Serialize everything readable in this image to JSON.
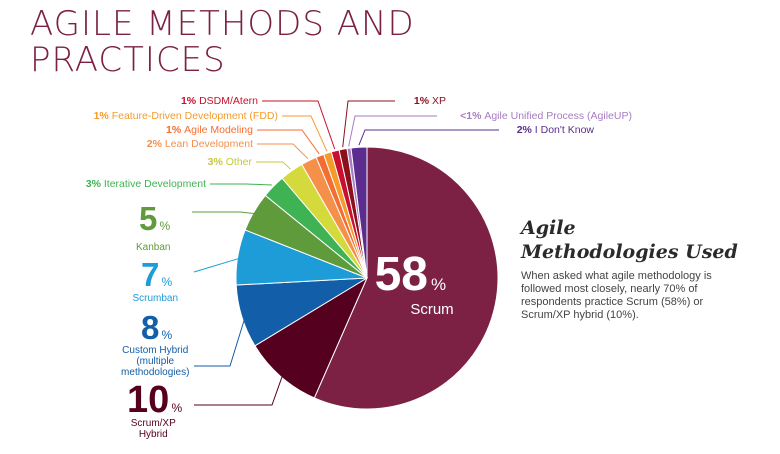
{
  "title_lines": [
    "AGILE METHODS AND",
    "PRACTICES"
  ],
  "side": {
    "heading_lines": [
      "Agile",
      "Methodologies Used"
    ],
    "body": "When asked what agile methodology is followed most closely, nearly 70% of respondents practice Scrum (58%) or Scrum/XP hybrid (10%)."
  },
  "chart_data": {
    "type": "pie",
    "title": "Agile Methodologies Used",
    "slices": [
      {
        "label": "Scrum",
        "display": "58",
        "value": 58,
        "color": "#7c2143"
      },
      {
        "label": "Scrum/XP Hybrid",
        "display": "10",
        "value": 10,
        "color": "#55001f"
      },
      {
        "label": "Custom Hybrid (multiple methodologies)",
        "display": "8",
        "value": 8,
        "color": "#135ea8"
      },
      {
        "label": "Scrumban",
        "display": "7",
        "value": 7,
        "color": "#1d9cd8"
      },
      {
        "label": "Kanban",
        "display": "5",
        "value": 5,
        "color": "#5f9b3b"
      },
      {
        "label": "Iterative Development",
        "display": "3",
        "value": 3,
        "color": "#3fb353"
      },
      {
        "label": "Other",
        "display": "3",
        "value": 3,
        "color": "#d4d93c"
      },
      {
        "label": "Lean Development",
        "display": "2",
        "value": 2,
        "color": "#f5904b"
      },
      {
        "label": "Agile Modeling",
        "display": "1",
        "value": 1,
        "color": "#f46e32"
      },
      {
        "label": "Feature-Driven Development (FDD)",
        "display": "1",
        "value": 1,
        "color": "#f59b2a"
      },
      {
        "label": "DSDM/Atern",
        "display": "1",
        "value": 1,
        "color": "#c9102e"
      },
      {
        "label": "XP",
        "display": "1",
        "value": 1,
        "color": "#8c0f1e"
      },
      {
        "label": "Agile Unified Process (AgileUP)",
        "display": "<1",
        "value": 0.5,
        "color": "#a77cc2"
      },
      {
        "label": "I Don't Know",
        "display": "2",
        "value": 2,
        "color": "#5b2d8e"
      }
    ],
    "legend_lines": {
      "Custom Hybrid (multiple methodologies)": [
        "Custom Hybrid",
        "(multiple",
        "methodologies)"
      ],
      "Scrum/XP Hybrid": [
        "Scrum/XP",
        "Hybrid"
      ]
    }
  }
}
